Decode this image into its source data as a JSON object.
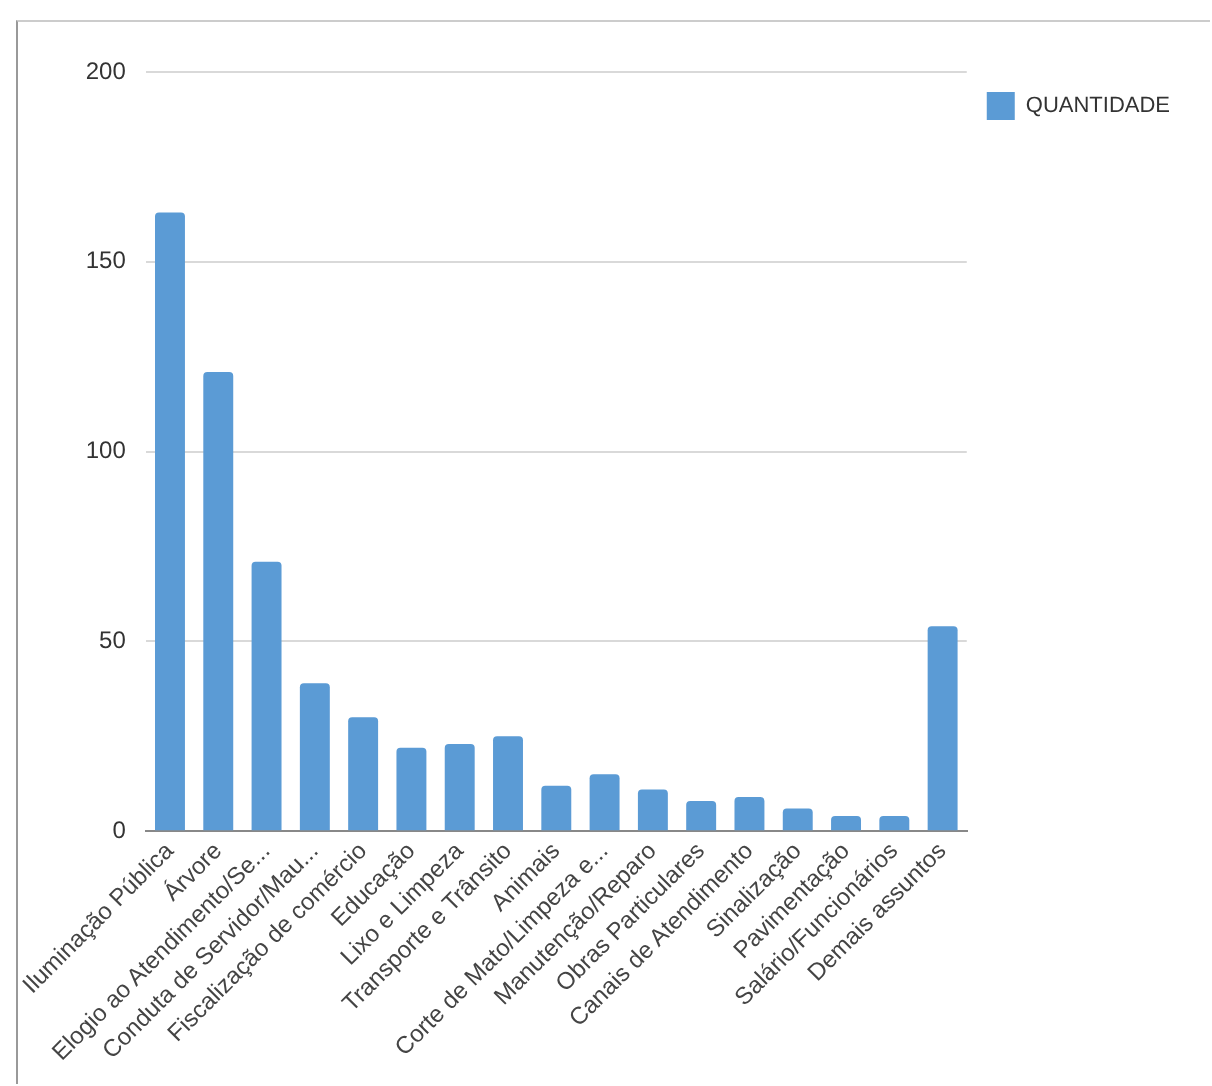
{
  "chart_data": {
    "type": "bar",
    "categories": [
      "Iluminação Pública",
      "Árvore",
      "Elogio ao Atendimento/Se...",
      "Conduta de Servidor/Mau...",
      "Fiscalização de comércio",
      "Educação",
      "Lixo e Limpeza",
      "Transporte e Trânsito",
      "Animais",
      "Corte de Mato/Limpeza e...",
      "Manutenção/Reparo",
      "Obras Particulares",
      "Canais de Atendimento",
      "Sinalização",
      "Pavimentação",
      "Salário/Funcionários",
      "Demais assuntos"
    ],
    "series": [
      {
        "name": "QUANTIDADE",
        "color": "#5b9bd5",
        "values": [
          163,
          121,
          71,
          39,
          30,
          22,
          23,
          25,
          12,
          15,
          11,
          8,
          9,
          6,
          4,
          4,
          54
        ]
      }
    ],
    "ylim": [
      0,
      200
    ],
    "yticks": [
      0,
      50,
      100,
      150,
      200
    ],
    "grid": "y",
    "legend": "right"
  }
}
